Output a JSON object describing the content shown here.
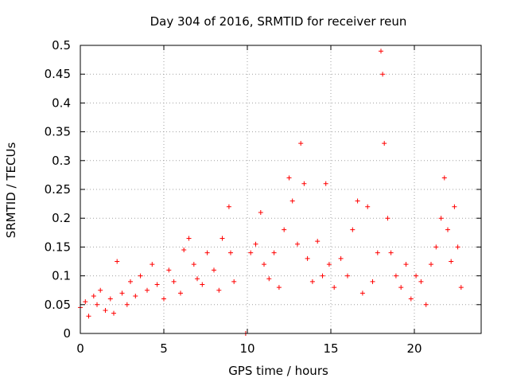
{
  "chart_data": {
    "type": "scatter",
    "title": "Day 304 of 2016, SRMTID for receiver reun",
    "xlabel": "GPS time / hours",
    "ylabel": "SRMTID / TECUs",
    "xlim": [
      0,
      24
    ],
    "ylim": [
      0,
      0.5
    ],
    "xticks": [
      0,
      5,
      10,
      15,
      20
    ],
    "xtick_labels": [
      "0",
      "5",
      "10",
      "15",
      "20"
    ],
    "yticks": [
      0,
      0.05,
      0.1,
      0.15,
      0.2,
      0.25,
      0.3,
      0.35,
      0.4,
      0.45,
      0.5
    ],
    "ytick_labels": [
      "0",
      "0.05",
      "0.1",
      "0.15",
      "0.2",
      "0.25",
      "0.3",
      "0.35",
      "0.4",
      "0.45",
      "0.5"
    ],
    "grid": true,
    "marker": "+",
    "color": "#ff0000",
    "series": [
      {
        "name": "SRMTID",
        "points": [
          [
            0.0,
            0.045
          ],
          [
            0.3,
            0.055
          ],
          [
            0.5,
            0.03
          ],
          [
            0.8,
            0.065
          ],
          [
            1.0,
            0.05
          ],
          [
            1.2,
            0.075
          ],
          [
            1.5,
            0.04
          ],
          [
            1.8,
            0.06
          ],
          [
            2.0,
            0.035
          ],
          [
            2.2,
            0.125
          ],
          [
            2.5,
            0.07
          ],
          [
            2.8,
            0.05
          ],
          [
            3.0,
            0.09
          ],
          [
            3.3,
            0.065
          ],
          [
            3.6,
            0.1
          ],
          [
            4.0,
            0.075
          ],
          [
            4.3,
            0.12
          ],
          [
            4.6,
            0.085
          ],
          [
            5.0,
            0.06
          ],
          [
            5.3,
            0.11
          ],
          [
            5.6,
            0.09
          ],
          [
            6.0,
            0.07
          ],
          [
            6.2,
            0.145
          ],
          [
            6.5,
            0.165
          ],
          [
            6.8,
            0.12
          ],
          [
            7.0,
            0.095
          ],
          [
            7.3,
            0.085
          ],
          [
            7.6,
            0.14
          ],
          [
            8.0,
            0.11
          ],
          [
            8.3,
            0.075
          ],
          [
            8.5,
            0.165
          ],
          [
            8.9,
            0.22
          ],
          [
            9.0,
            0.14
          ],
          [
            9.2,
            0.09
          ],
          [
            9.9,
            0.0
          ],
          [
            10.2,
            0.14
          ],
          [
            10.5,
            0.155
          ],
          [
            10.8,
            0.21
          ],
          [
            11.0,
            0.12
          ],
          [
            11.3,
            0.095
          ],
          [
            11.6,
            0.14
          ],
          [
            11.9,
            0.08
          ],
          [
            12.2,
            0.18
          ],
          [
            12.5,
            0.27
          ],
          [
            12.7,
            0.23
          ],
          [
            13.0,
            0.155
          ],
          [
            13.2,
            0.33
          ],
          [
            13.4,
            0.26
          ],
          [
            13.6,
            0.13
          ],
          [
            13.9,
            0.09
          ],
          [
            14.2,
            0.16
          ],
          [
            14.5,
            0.1
          ],
          [
            14.7,
            0.26
          ],
          [
            14.9,
            0.12
          ],
          [
            15.2,
            0.08
          ],
          [
            15.6,
            0.13
          ],
          [
            16.0,
            0.1
          ],
          [
            16.3,
            0.18
          ],
          [
            16.6,
            0.23
          ],
          [
            16.9,
            0.07
          ],
          [
            17.2,
            0.22
          ],
          [
            17.5,
            0.09
          ],
          [
            17.8,
            0.14
          ],
          [
            18.0,
            0.49
          ],
          [
            18.1,
            0.45
          ],
          [
            18.2,
            0.33
          ],
          [
            18.4,
            0.2
          ],
          [
            18.6,
            0.14
          ],
          [
            18.9,
            0.1
          ],
          [
            19.2,
            0.08
          ],
          [
            19.5,
            0.12
          ],
          [
            19.8,
            0.06
          ],
          [
            20.1,
            0.1
          ],
          [
            20.4,
            0.09
          ],
          [
            20.7,
            0.05
          ],
          [
            21.0,
            0.12
          ],
          [
            21.3,
            0.15
          ],
          [
            21.6,
            0.2
          ],
          [
            21.8,
            0.27
          ],
          [
            22.0,
            0.18
          ],
          [
            22.2,
            0.125
          ],
          [
            22.4,
            0.22
          ],
          [
            22.6,
            0.15
          ],
          [
            22.8,
            0.08
          ]
        ]
      }
    ]
  }
}
